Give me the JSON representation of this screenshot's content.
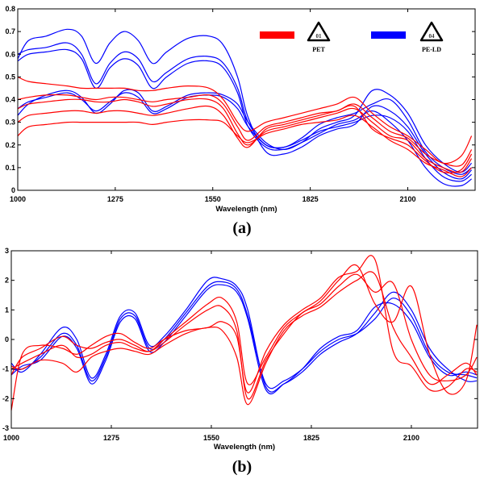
{
  "colors": {
    "PET": "#ff0000",
    "PE-LD": "#0000ff"
  },
  "legend": {
    "items": [
      {
        "series": "PET",
        "symbol_code": "01",
        "label": "PET",
        "color": "#ff0000",
        "icon": "recycle-triangle-icon"
      },
      {
        "series": "PE-LD",
        "symbol_code": "04",
        "label": "PE-LD",
        "color": "#0000ff",
        "icon": "recycle-triangle-icon"
      }
    ]
  },
  "chart_data": [
    {
      "type": "line",
      "panel_label": "(a)",
      "xlabel": "Wavelength (nm)",
      "ylabel": "",
      "xlim": [
        1000,
        2290
      ],
      "ylim": [
        0,
        0.8
      ],
      "xticks": [
        "1000",
        "1275",
        "1550",
        "1825",
        "2100"
      ],
      "yticks": [
        "0",
        "0.1",
        "0.2",
        "0.3",
        "0.4",
        "0.5",
        "0.6",
        "0.7",
        "0.8"
      ],
      "grid": false,
      "legend_position": "top-right",
      "x": [
        1000,
        1030,
        1080,
        1140,
        1180,
        1220,
        1260,
        1300,
        1340,
        1380,
        1420,
        1480,
        1540,
        1580,
        1620,
        1650,
        1700,
        1750,
        1800,
        1850,
        1900,
        1950,
        2000,
        2050,
        2100,
        2150,
        2200,
        2250,
        2280
      ],
      "series": [
        {
          "class": "PE-LD",
          "values": [
            0.6,
            0.62,
            0.63,
            0.65,
            0.6,
            0.47,
            0.56,
            0.61,
            0.58,
            0.48,
            0.52,
            0.58,
            0.59,
            0.56,
            0.45,
            0.3,
            0.2,
            0.19,
            0.22,
            0.26,
            0.28,
            0.3,
            0.33,
            0.32,
            0.26,
            0.14,
            0.06,
            0.04,
            0.07
          ]
        },
        {
          "class": "PE-LD",
          "values": [
            0.58,
            0.66,
            0.68,
            0.71,
            0.68,
            0.56,
            0.65,
            0.7,
            0.66,
            0.56,
            0.61,
            0.67,
            0.68,
            0.64,
            0.5,
            0.32,
            0.17,
            0.16,
            0.19,
            0.24,
            0.27,
            0.29,
            0.37,
            0.35,
            0.28,
            0.16,
            0.08,
            0.05,
            0.09
          ]
        },
        {
          "class": "PE-LD",
          "values": [
            0.57,
            0.6,
            0.61,
            0.62,
            0.58,
            0.45,
            0.54,
            0.58,
            0.55,
            0.45,
            0.5,
            0.56,
            0.57,
            0.54,
            0.43,
            0.28,
            0.19,
            0.18,
            0.21,
            0.25,
            0.29,
            0.31,
            0.35,
            0.3,
            0.22,
            0.1,
            0.03,
            0.02,
            0.05
          ]
        },
        {
          "class": "PE-LD",
          "values": [
            0.33,
            0.38,
            0.42,
            0.44,
            0.41,
            0.34,
            0.38,
            0.44,
            0.43,
            0.35,
            0.37,
            0.42,
            0.43,
            0.42,
            0.38,
            0.3,
            0.21,
            0.18,
            0.21,
            0.27,
            0.3,
            0.33,
            0.44,
            0.42,
            0.34,
            0.2,
            0.12,
            0.08,
            0.12
          ]
        },
        {
          "class": "PE-LD",
          "values": [
            0.36,
            0.39,
            0.41,
            0.43,
            0.4,
            0.35,
            0.39,
            0.43,
            0.41,
            0.34,
            0.36,
            0.41,
            0.42,
            0.41,
            0.36,
            0.28,
            0.2,
            0.19,
            0.23,
            0.29,
            0.32,
            0.34,
            0.38,
            0.4,
            0.31,
            0.17,
            0.1,
            0.07,
            0.1
          ]
        },
        {
          "class": "PET",
          "values": [
            0.5,
            0.48,
            0.47,
            0.46,
            0.45,
            0.45,
            0.45,
            0.45,
            0.44,
            0.44,
            0.45,
            0.46,
            0.45,
            0.4,
            0.3,
            0.26,
            0.3,
            0.32,
            0.34,
            0.36,
            0.38,
            0.41,
            0.34,
            0.28,
            0.24,
            0.18,
            0.12,
            0.15,
            0.24
          ]
        },
        {
          "class": "PET",
          "values": [
            0.36,
            0.38,
            0.39,
            0.4,
            0.4,
            0.39,
            0.39,
            0.4,
            0.39,
            0.37,
            0.38,
            0.4,
            0.4,
            0.36,
            0.25,
            0.2,
            0.26,
            0.28,
            0.3,
            0.32,
            0.34,
            0.36,
            0.3,
            0.24,
            0.22,
            0.14,
            0.1,
            0.08,
            0.14
          ]
        },
        {
          "class": "PET",
          "values": [
            0.4,
            0.41,
            0.42,
            0.42,
            0.41,
            0.4,
            0.41,
            0.41,
            0.4,
            0.39,
            0.4,
            0.41,
            0.42,
            0.38,
            0.28,
            0.22,
            0.28,
            0.3,
            0.32,
            0.34,
            0.35,
            0.38,
            0.32,
            0.26,
            0.23,
            0.16,
            0.12,
            0.11,
            0.18
          ]
        },
        {
          "class": "PET",
          "values": [
            0.24,
            0.28,
            0.29,
            0.3,
            0.3,
            0.3,
            0.3,
            0.3,
            0.3,
            0.29,
            0.3,
            0.31,
            0.31,
            0.3,
            0.24,
            0.21,
            0.25,
            0.27,
            0.29,
            0.3,
            0.31,
            0.33,
            0.28,
            0.22,
            0.18,
            0.12,
            0.09,
            0.06,
            0.1
          ]
        },
        {
          "class": "PET",
          "values": [
            0.3,
            0.33,
            0.34,
            0.35,
            0.35,
            0.34,
            0.35,
            0.35,
            0.34,
            0.33,
            0.34,
            0.36,
            0.37,
            0.33,
            0.23,
            0.19,
            0.27,
            0.29,
            0.31,
            0.33,
            0.35,
            0.37,
            0.27,
            0.23,
            0.2,
            0.13,
            0.08,
            0.09,
            0.16
          ]
        }
      ]
    },
    {
      "type": "line",
      "panel_label": "(b)",
      "xlabel": "Wavelength (nm)",
      "ylabel": "",
      "xlim": [
        1000,
        2282
      ],
      "ylim": [
        -3,
        3
      ],
      "xticks": [
        "1000",
        "1275",
        "1550",
        "1825",
        "2100"
      ],
      "yticks": [
        "-3",
        "-2",
        "-1",
        "0",
        "1",
        "2",
        "3"
      ],
      "grid": false,
      "x": [
        1000,
        1030,
        1080,
        1140,
        1180,
        1220,
        1260,
        1300,
        1340,
        1380,
        1420,
        1480,
        1540,
        1580,
        1620,
        1650,
        1700,
        1750,
        1800,
        1850,
        1900,
        1950,
        2000,
        2050,
        2100,
        2150,
        2200,
        2250,
        2280
      ],
      "series": [
        {
          "class": "PE-LD",
          "values": [
            -1.0,
            -1.0,
            -0.6,
            0.2,
            -0.2,
            -1.4,
            -0.6,
            0.7,
            0.8,
            -0.3,
            0.0,
            0.9,
            1.8,
            1.95,
            1.7,
            0.8,
            -1.5,
            -1.4,
            -1.0,
            -0.4,
            0.0,
            0.2,
            0.7,
            1.4,
            0.8,
            -0.5,
            -1.1,
            -1.2,
            -1.3
          ]
        },
        {
          "class": "PE-LD",
          "values": [
            -0.8,
            -1.1,
            -0.5,
            0.4,
            0.0,
            -1.3,
            -0.5,
            0.8,
            0.9,
            -0.2,
            0.1,
            1.0,
            2.0,
            2.05,
            1.8,
            1.0,
            -1.6,
            -1.5,
            -1.1,
            -0.5,
            -0.1,
            0.2,
            0.9,
            1.6,
            1.0,
            -0.3,
            -1.0,
            -1.4,
            -1.4
          ]
        },
        {
          "class": "PE-LD",
          "values": [
            -1.2,
            -0.9,
            -0.7,
            0.1,
            -0.3,
            -1.5,
            -0.7,
            0.6,
            0.7,
            -0.4,
            -0.1,
            0.8,
            1.7,
            1.85,
            1.6,
            0.7,
            -1.7,
            -1.5,
            -1.0,
            -0.3,
            0.1,
            0.3,
            1.1,
            1.2,
            0.6,
            -0.6,
            -1.2,
            -1.1,
            -1.2
          ]
        },
        {
          "class": "PET",
          "values": [
            -1.2,
            -0.6,
            -0.3,
            0.1,
            -0.2,
            -0.3,
            -0.1,
            0.0,
            -0.2,
            -0.4,
            0.0,
            0.6,
            1.2,
            1.4,
            0.6,
            -1.5,
            -0.6,
            0.4,
            0.9,
            1.3,
            2.0,
            2.5,
            1.2,
            0.6,
            1.8,
            -0.5,
            -1.8,
            -1.4,
            0.5
          ]
        },
        {
          "class": "PET",
          "values": [
            -0.9,
            -1.0,
            -0.7,
            -0.8,
            -1.1,
            -0.6,
            -0.4,
            -0.3,
            -0.4,
            -0.5,
            -0.2,
            0.2,
            0.4,
            0.3,
            -0.6,
            -2.2,
            -0.8,
            0.3,
            0.8,
            1.1,
            1.6,
            2.0,
            2.2,
            0.4,
            -0.6,
            -1.5,
            -1.2,
            -0.8,
            -1.2
          ]
        },
        {
          "class": "PET",
          "values": [
            -2.4,
            -0.5,
            -0.2,
            -0.3,
            -0.5,
            -0.2,
            0.1,
            0.2,
            -0.1,
            -0.3,
            0.0,
            0.3,
            0.4,
            0.6,
            0.1,
            -1.8,
            -0.4,
            0.5,
            1.0,
            1.4,
            2.1,
            2.3,
            2.7,
            -0.4,
            -0.9,
            -1.7,
            -1.6,
            -1.0,
            -1.1
          ]
        },
        {
          "class": "PET",
          "values": [
            -1.0,
            -0.8,
            -0.5,
            -0.2,
            -0.6,
            -0.5,
            -0.2,
            -0.1,
            -0.3,
            -0.4,
            -0.1,
            0.5,
            1.0,
            1.1,
            0.3,
            -2.0,
            -0.7,
            0.2,
            0.9,
            1.2,
            1.8,
            2.2,
            1.6,
            1.9,
            0.0,
            -1.2,
            -1.4,
            -1.2,
            -0.6
          ]
        }
      ]
    }
  ]
}
